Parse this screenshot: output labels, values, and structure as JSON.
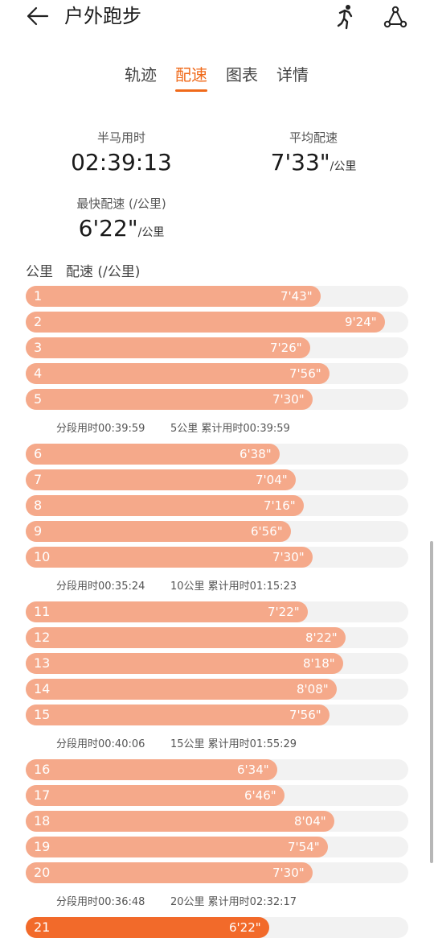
{
  "header": {
    "title": "户外跑步",
    "back_icon": "arrow-left-icon",
    "runner_icon": "runner-icon",
    "route_icon": "route-icon"
  },
  "tabs": [
    {
      "label": "轨迹",
      "active": false
    },
    {
      "label": "配速",
      "active": true
    },
    {
      "label": "图表",
      "active": false
    },
    {
      "label": "详情",
      "active": false
    }
  ],
  "stats": {
    "half_marathon": {
      "label": "半马用时",
      "value": "02:39:13"
    },
    "avg_pace": {
      "label": "平均配速",
      "value": "7'33\"",
      "unit": "/公里"
    },
    "fastest_pace": {
      "label": "最快配速 (/公里)",
      "value": "6'22\"",
      "unit": "/公里"
    }
  },
  "table": {
    "col_km": "公里",
    "col_pace": "配速 (/公里)",
    "max_pace_seconds": 600,
    "splits": [
      {
        "km": "1",
        "pace": "7'43\"",
        "seconds": 463
      },
      {
        "km": "2",
        "pace": "9'24\"",
        "seconds": 564
      },
      {
        "km": "3",
        "pace": "7'26\"",
        "seconds": 446
      },
      {
        "km": "4",
        "pace": "7'56\"",
        "seconds": 476
      },
      {
        "km": "5",
        "pace": "7'30\"",
        "seconds": 450
      },
      {
        "km": "6",
        "pace": "6'38\"",
        "seconds": 398
      },
      {
        "km": "7",
        "pace": "7'04\"",
        "seconds": 424
      },
      {
        "km": "8",
        "pace": "7'16\"",
        "seconds": 436
      },
      {
        "km": "9",
        "pace": "6'56\"",
        "seconds": 416
      },
      {
        "km": "10",
        "pace": "7'30\"",
        "seconds": 450
      },
      {
        "km": "11",
        "pace": "7'22\"",
        "seconds": 442
      },
      {
        "km": "12",
        "pace": "8'22\"",
        "seconds": 502
      },
      {
        "km": "13",
        "pace": "8'18\"",
        "seconds": 498
      },
      {
        "km": "14",
        "pace": "8'08\"",
        "seconds": 488
      },
      {
        "km": "15",
        "pace": "7'56\"",
        "seconds": 476
      },
      {
        "km": "16",
        "pace": "6'34\"",
        "seconds": 394
      },
      {
        "km": "17",
        "pace": "6'46\"",
        "seconds": 406
      },
      {
        "km": "18",
        "pace": "8'04\"",
        "seconds": 484
      },
      {
        "km": "19",
        "pace": "7'54\"",
        "seconds": 474
      },
      {
        "km": "20",
        "pace": "7'30\"",
        "seconds": 450
      },
      {
        "km": "21",
        "pace": "6'22\"",
        "seconds": 382,
        "fastest": true
      }
    ],
    "summaries": [
      {
        "split": "分段用时00:39:59",
        "cumulative": "5公里 累计用时00:39:59"
      },
      {
        "split": "分段用时00:35:24",
        "cumulative": "10公里 累计用时01:15:23"
      },
      {
        "split": "分段用时00:40:06",
        "cumulative": "15公里 累计用时01:55:29"
      },
      {
        "split": "分段用时00:36:48",
        "cumulative": "20公里 累计用时02:32:17"
      }
    ]
  },
  "colors": {
    "accent": "#f06a1a",
    "bar": "#f5a98a",
    "bar_fastest": "#f26a2a",
    "track": "#f2f2f2"
  }
}
